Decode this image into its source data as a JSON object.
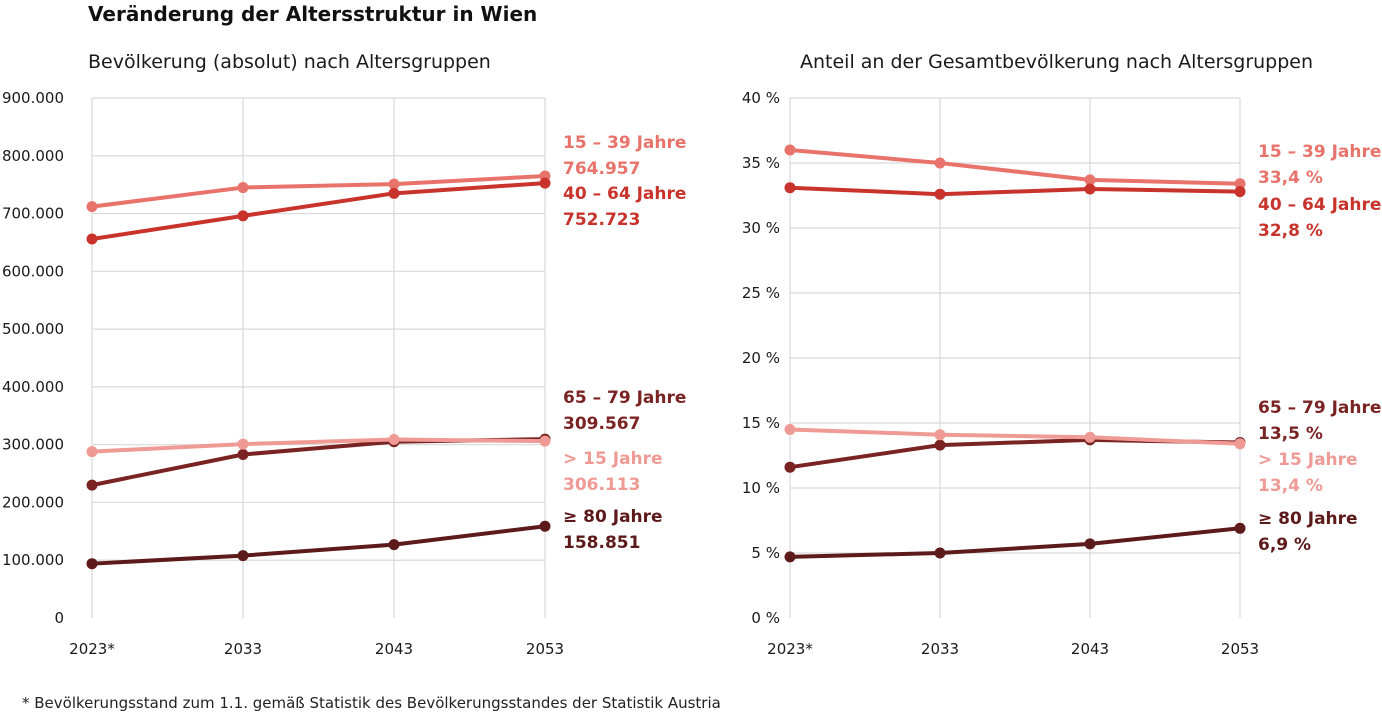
{
  "page": {
    "title": "Veränderung der Altersstruktur in Wien",
    "footnote": "* Bevölkerungsstand zum 1.1. gemäß Statistik des Bevölkerungsstandes der Statistik Austria"
  },
  "colors": {
    "g15_39": "#e8736b",
    "g40_64": "#c8332c",
    "g65_79": "#7a2323",
    "g_u15": "#ef9a94",
    "g80": "#5c1a1a"
  },
  "chart_data": [
    {
      "type": "line",
      "title": "Bevölkerung (absolut) nach Altersgruppen",
      "x": [
        "2023*",
        "2033",
        "2043",
        "2053"
      ],
      "ylim": [
        0,
        900000
      ],
      "yticks": [
        "0",
        "100.000",
        "200.000",
        "300.000",
        "400.000",
        "500.000",
        "600.000",
        "700.000",
        "800.000",
        "900.000"
      ],
      "grid": true,
      "series": [
        {
          "key": "g15_39",
          "name": "15 – 39 Jahre",
          "end_label": "764.957",
          "values": [
            712000,
            745000,
            751000,
            764957
          ]
        },
        {
          "key": "g40_64",
          "name": "40 – 64 Jahre",
          "end_label": "752.723",
          "values": [
            656000,
            696000,
            735000,
            752723
          ]
        },
        {
          "key": "g65_79",
          "name": "65 – 79 Jahre",
          "end_label": "309.567",
          "values": [
            230000,
            283000,
            305000,
            309567
          ]
        },
        {
          "key": "g_u15",
          "name": "> 15 Jahre",
          "end_label": "306.113",
          "values": [
            288000,
            301000,
            309000,
            306113
          ]
        },
        {
          "key": "g80",
          "name": "≥ 80 Jahre",
          "end_label": "158.851",
          "values": [
            94000,
            108000,
            127000,
            158851
          ]
        }
      ]
    },
    {
      "type": "line",
      "title": "Anteil an der Gesamtbevölkerung nach Altersgruppen",
      "x": [
        "2023*",
        "2033",
        "2043",
        "2053"
      ],
      "ylim": [
        0,
        40
      ],
      "yticks": [
        "0 %",
        "5 %",
        "10 %",
        "15 %",
        "20 %",
        "25 %",
        "30 %",
        "35 %",
        "40 %"
      ],
      "grid": true,
      "series": [
        {
          "key": "g15_39",
          "name": "15 – 39 Jahre",
          "end_label": "33,4 %",
          "values": [
            36.0,
            35.0,
            33.7,
            33.4
          ]
        },
        {
          "key": "g40_64",
          "name": "40 – 64 Jahre",
          "end_label": "32,8 %",
          "values": [
            33.1,
            32.6,
            33.0,
            32.8
          ]
        },
        {
          "key": "g65_79",
          "name": "65 – 79 Jahre",
          "end_label": "13,5 %",
          "values": [
            11.6,
            13.3,
            13.7,
            13.5
          ]
        },
        {
          "key": "g_u15",
          "name": "> 15 Jahre",
          "end_label": "13,4 %",
          "values": [
            14.5,
            14.1,
            13.9,
            13.4
          ]
        },
        {
          "key": "g80",
          "name": "≥ 80 Jahre",
          "end_label": "6,9 %",
          "values": [
            4.7,
            5.0,
            5.7,
            6.9
          ]
        }
      ]
    }
  ]
}
